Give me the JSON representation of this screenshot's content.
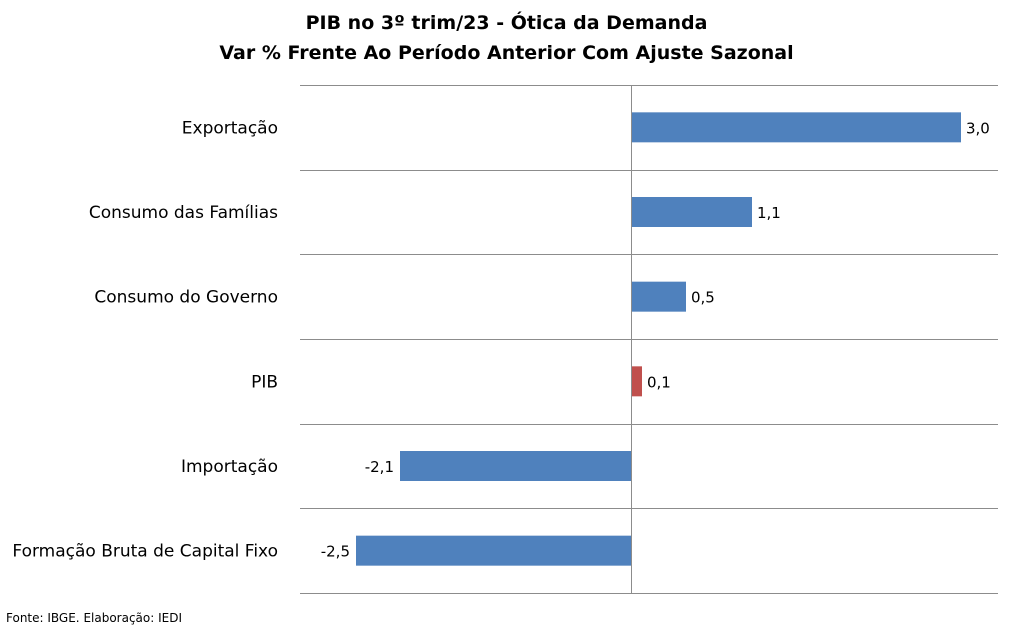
{
  "chart_data": {
    "type": "bar",
    "orientation": "horizontal",
    "title": "PIB no 3º trim/23 - Ótica da Demanda",
    "subtitle": "Var % Frente Ao Período Anterior Com Ajuste Sazonal",
    "categories": [
      "Exportação",
      "Consumo das Famílias",
      "Consumo do Governo",
      "PIB",
      "Importação",
      "Formação Bruta de Capital Fixo"
    ],
    "values": [
      3.0,
      1.1,
      0.5,
      0.1,
      -2.1,
      -2.5
    ],
    "data_labels": [
      "3,0",
      "1,1",
      "0,5",
      "0,1",
      "-2,1",
      "-2,5"
    ],
    "colors": [
      "#4f81bd",
      "#4f81bd",
      "#4f81bd",
      "#c0504d",
      "#4f81bd",
      "#4f81bd"
    ],
    "xlim": [
      -3.0,
      3.3
    ],
    "grid": "horizontal separators between categories",
    "legend": "none"
  },
  "source": "Fonte: IBGE. Elaboração: IEDI"
}
